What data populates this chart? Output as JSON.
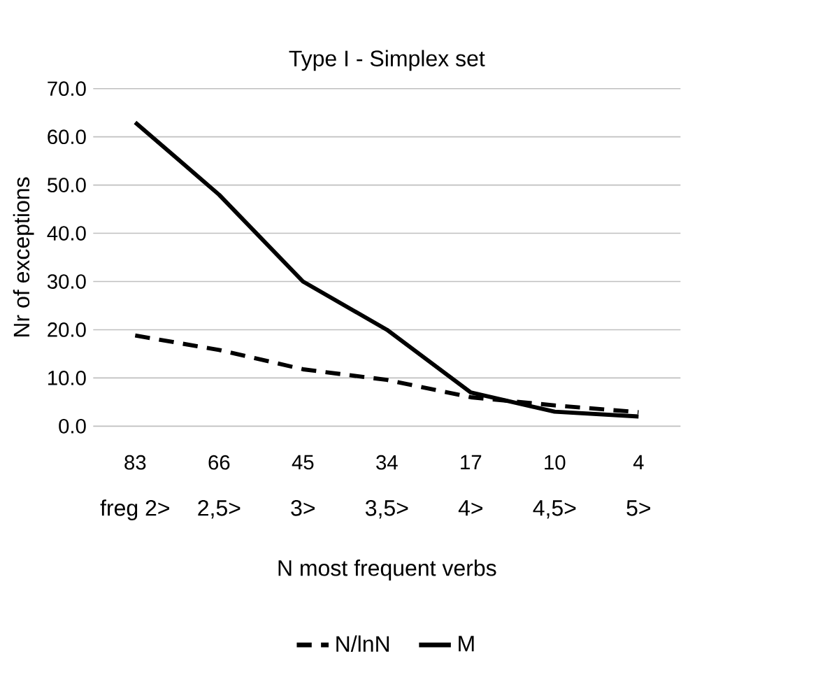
{
  "chart_data": {
    "type": "line",
    "title": "Type I - Simplex set",
    "xlabel": "N most frequent verbs",
    "ylabel": "Nr of exceptions",
    "categories": [
      "83",
      "66",
      "45",
      "34",
      "17",
      "10",
      "4"
    ],
    "annotations": [
      "freg 2>",
      "2,5>",
      "3>",
      "3,5>",
      "4>",
      "4,5>",
      "5>"
    ],
    "series": [
      {
        "name": "N/lnN",
        "color": "#000000",
        "line_style": "dashed",
        "values": [
          18.8,
          15.8,
          11.8,
          9.6,
          6.0,
          4.3,
          2.9
        ]
      },
      {
        "name": "M",
        "color": "#000000",
        "line_style": "solid",
        "values": [
          63,
          48,
          30,
          20,
          7,
          3,
          2
        ]
      }
    ],
    "ylim": [
      0,
      70
    ],
    "yticks": [
      {
        "value": 0,
        "label": "0.0"
      },
      {
        "value": 10,
        "label": "10.0"
      },
      {
        "value": 20,
        "label": "20.0"
      },
      {
        "value": 30,
        "label": "30.0"
      },
      {
        "value": 40,
        "label": "40.0"
      },
      {
        "value": 50,
        "label": "50.0"
      },
      {
        "value": 60,
        "label": "60.0"
      },
      {
        "value": 70,
        "label": "70.0"
      }
    ],
    "grid": "y",
    "legend": "bottom",
    "marker": "none"
  }
}
